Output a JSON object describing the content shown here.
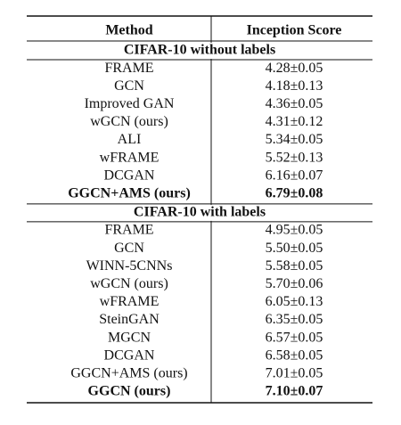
{
  "table": {
    "header": [
      "Method",
      "Inception Score"
    ],
    "sections": [
      {
        "title": "CIFAR-10 without labels",
        "rows": [
          {
            "method": "FRAME",
            "score": "4.28±0.05"
          },
          {
            "method": "GCN",
            "score": "4.18±0.13"
          },
          {
            "method": "Improved GAN",
            "score": "4.36±0.05"
          },
          {
            "method": "wGCN (ours)",
            "score": "4.31±0.12"
          },
          {
            "method": "ALI",
            "score": "5.34±0.05"
          },
          {
            "method": "wFRAME",
            "score": "5.52±0.13"
          },
          {
            "method": "DCGAN",
            "score": "6.16±0.07"
          },
          {
            "method": "GGCN+AMS (ours)",
            "score": "6.79±0.08",
            "bold": true
          }
        ]
      },
      {
        "title": "CIFAR-10 with labels",
        "rows": [
          {
            "method": "FRAME",
            "score": "4.95±0.05"
          },
          {
            "method": "GCN",
            "score": "5.50±0.05"
          },
          {
            "method": "WINN-5CNNs",
            "score": "5.58±0.05"
          },
          {
            "method": "wGCN (ours)",
            "score": "5.70±0.06"
          },
          {
            "method": "wFRAME",
            "score": "6.05±0.13"
          },
          {
            "method": "SteinGAN",
            "score": "6.35±0.05"
          },
          {
            "method": "MGCN",
            "score": "6.57±0.05"
          },
          {
            "method": "DCGAN",
            "score": "6.58±0.05"
          },
          {
            "method": "GGCN+AMS (ours)",
            "score": "7.01±0.05"
          },
          {
            "method": "GGCN (ours)",
            "score": "7.10±0.07",
            "bold": true
          }
        ]
      }
    ]
  }
}
